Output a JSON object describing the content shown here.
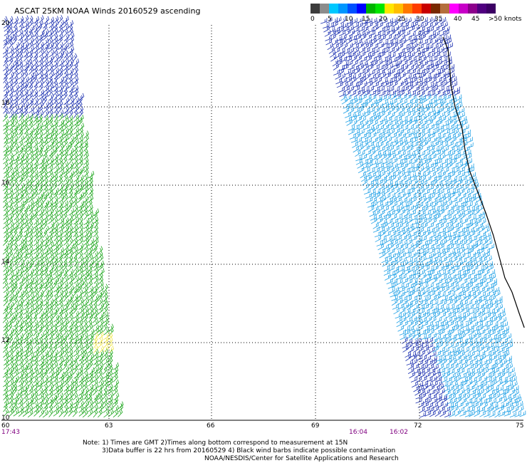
{
  "title": "ASCAT 25KM NOAA Winds 20160529 ascending",
  "colorbar": {
    "colors": [
      "#3c3c3c",
      "#8c8c8c",
      "#00c8ff",
      "#0096ff",
      "#0050ff",
      "#0000ff",
      "#00b400",
      "#00e600",
      "#ffe600",
      "#ffbe00",
      "#ff7800",
      "#ff3c00",
      "#c80000",
      "#782800",
      "#b46e3c",
      "#ff00ff",
      "#c800c8",
      "#8c008c",
      "#500080",
      "#3c0064"
    ],
    "labels": [
      "0",
      "5",
      "10",
      "15",
      "20",
      "25",
      "30",
      "35",
      "40",
      "45",
      ">50 knots"
    ]
  },
  "y_ticks": [
    "20",
    "18",
    "16",
    "14",
    "12",
    "10"
  ],
  "x_ticks": [
    "60",
    "63",
    "66",
    "69",
    "72",
    "75"
  ],
  "times": [
    "17:43",
    "16:04",
    "16:02"
  ],
  "notes": [
    "Note: 1) Times are GMT 2)Times along bottom correspond to measurement at 15N",
    "3)Data buffer is 22 hrs from 20160529 4) Black wind barbs indicate possible contamination",
    "NOAA/NESDIS/Center for Satellite Applications and Research"
  ],
  "legend_colors": {
    "blue_dark": "#1a2fb0",
    "blue_light": "#1ea0e6",
    "green": "#19a519",
    "yellow": "#f0e64b",
    "coast": "#000000"
  }
}
